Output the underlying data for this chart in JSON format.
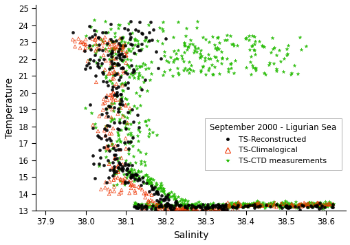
{
  "title": "September 2000 - Ligurian Sea",
  "xlabel": "Salinity",
  "ylabel": "Temperature",
  "xlim": [
    37.875,
    38.65
  ],
  "ylim": [
    13.0,
    25.2
  ],
  "xticks": [
    37.9,
    38.0,
    38.1,
    38.2,
    38.3,
    38.4,
    38.5,
    38.6
  ],
  "yticks": [
    13,
    14,
    15,
    16,
    17,
    18,
    19,
    20,
    21,
    22,
    23,
    24,
    25
  ],
  "series": [
    {
      "label": "TS-Reconstructed",
      "color": "black",
      "marker": "o",
      "ms": 10
    },
    {
      "label": "TS-Climalogical",
      "color": "#EE3300",
      "marker": "^",
      "ms": 12
    },
    {
      "label": "TS-CTD measurements",
      "color": "#22BB00",
      "marker": "*",
      "ms": 14
    }
  ]
}
